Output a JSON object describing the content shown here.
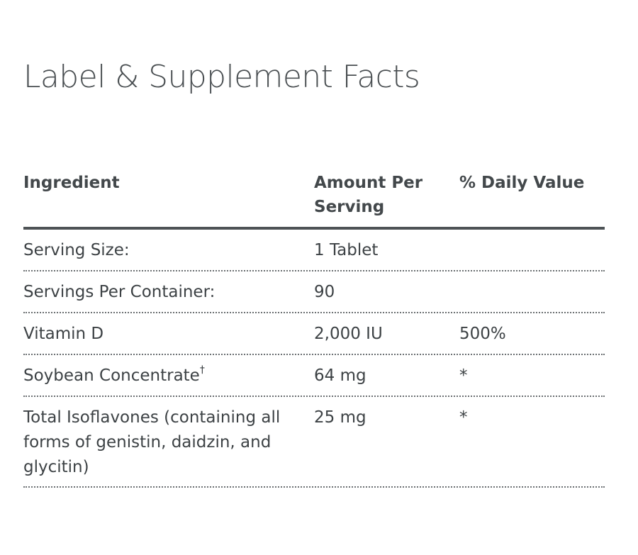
{
  "page": {
    "title": "Label & Supplement Facts"
  },
  "table": {
    "headers": {
      "ingredient": "Ingredient",
      "amount": "Amount Per Serving",
      "daily_value": "% Daily Value"
    },
    "rows": [
      {
        "ingredient": "Serving Size:",
        "ingredient_mark": "",
        "amount": "1 Tablet",
        "daily_value": ""
      },
      {
        "ingredient": "Servings Per Container:",
        "ingredient_mark": "",
        "amount": "90",
        "daily_value": ""
      },
      {
        "ingredient": "Vitamin D",
        "ingredient_mark": "",
        "amount": "2,000 IU",
        "daily_value": "500%"
      },
      {
        "ingredient": "Soybean Concentrate",
        "ingredient_mark": "†",
        "amount": "64 mg",
        "daily_value": "*"
      },
      {
        "ingredient": "Total Isoflavones (containing all forms of genistin, daidzin, and glycitin)",
        "ingredient_mark": "",
        "amount": "25 mg",
        "daily_value": "*"
      }
    ]
  },
  "colors": {
    "text": "#3d4245",
    "title": "#4a4f52",
    "rule": "#4e5356",
    "dotted_rule": "#6b6f72",
    "background": "#ffffff"
  }
}
